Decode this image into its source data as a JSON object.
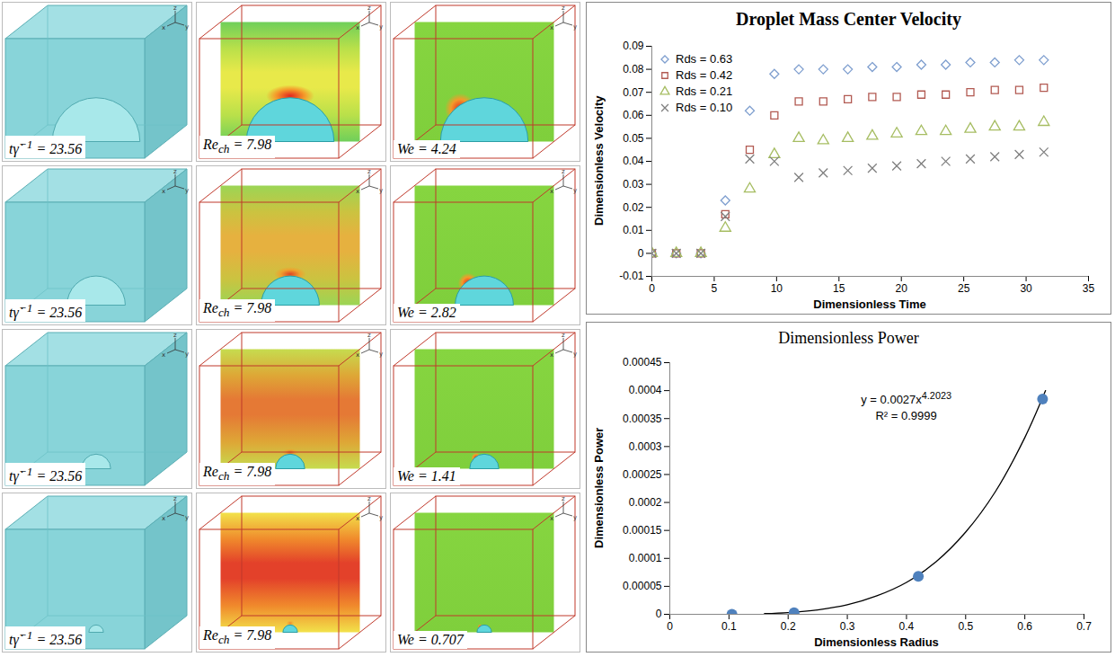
{
  "panels": {
    "separator": "=",
    "time_symbol": {
      "text": "tγ̇",
      "sup": "−1"
    },
    "re_symbol": {
      "text": "Re",
      "sub": "ch"
    },
    "we_symbol": {
      "text": "We"
    },
    "triad": [
      "x",
      "y",
      "z"
    ],
    "rows": [
      {
        "time": 23.56,
        "re": 7.98,
        "we": 4.24
      },
      {
        "time": 23.56,
        "re": 7.98,
        "we": 2.82
      },
      {
        "time": 23.56,
        "re": 7.98,
        "we": 1.41
      },
      {
        "time": 23.56,
        "re": 7.98,
        "we": 0.707
      }
    ]
  },
  "chart_data": [
    {
      "type": "scatter",
      "title": "Droplet Mass Center Velocity",
      "x_label": "Dimensionless Time",
      "y_label": "Dimensionless Velocity",
      "x": [
        0,
        1.96,
        3.93,
        5.89,
        7.85,
        9.82,
        11.78,
        13.74,
        15.71,
        17.67,
        19.63,
        21.6,
        23.56,
        25.53,
        27.49,
        29.45,
        31.42
      ],
      "series": [
        {
          "name": "Rds = 0.63",
          "color": "#7f9fcf",
          "marker": "diamond",
          "values": [
            0,
            0,
            0,
            0.023,
            0.062,
            0.078,
            0.08,
            0.08,
            0.08,
            0.081,
            0.081,
            0.082,
            0.082,
            0.083,
            0.083,
            0.084,
            0.084
          ]
        },
        {
          "name": "Rds = 0.42",
          "color": "#b25a52",
          "marker": "square",
          "values": [
            0,
            0,
            0,
            0.017,
            0.045,
            0.06,
            0.066,
            0.066,
            0.067,
            0.068,
            0.068,
            0.069,
            0.069,
            0.07,
            0.071,
            0.071,
            0.072
          ]
        },
        {
          "name": "Rds = 0.21",
          "color": "#a6bd62",
          "marker": "triangle",
          "values": [
            0,
            0,
            0,
            0.011,
            0.028,
            0.043,
            0.05,
            0.049,
            0.05,
            0.051,
            0.052,
            0.053,
            0.053,
            0.054,
            0.055,
            0.055,
            0.057
          ]
        },
        {
          "name": "Rds = 0.10",
          "color": "#7f7f7f",
          "marker": "x",
          "values": [
            0,
            0,
            0,
            0.016,
            0.041,
            0.04,
            0.033,
            0.035,
            0.036,
            0.037,
            0.038,
            0.039,
            0.04,
            0.041,
            0.042,
            0.043,
            0.044
          ]
        }
      ],
      "xlim": [
        0,
        35
      ],
      "xticks": [
        0,
        5,
        10,
        15,
        20,
        25,
        30,
        35
      ],
      "ylim": [
        -0.01,
        0.09
      ],
      "yticks": [
        -0.01,
        0,
        0.01,
        0.02,
        0.03,
        0.04,
        0.05,
        0.06,
        0.07,
        0.08,
        0.09
      ],
      "grid": false,
      "legend": "top-left"
    },
    {
      "type": "scatter",
      "title": "Dimensionless Power",
      "x_label": "Dimensionless Radius",
      "y_label": "Dimensionless Power",
      "x": [
        0.105,
        0.21,
        0.42,
        0.63
      ],
      "values": [
        0,
        3e-06,
        6.8e-05,
        0.000385
      ],
      "color": "#4f81bd",
      "marker": "circle",
      "trendline": {
        "x": [
          0.16,
          0.2,
          0.25,
          0.3,
          0.35,
          0.4,
          0.45,
          0.5,
          0.55,
          0.6,
          0.635
        ],
        "values": [
          1.2e-06,
          3.1e-06,
          8e-06,
          1.7e-05,
          3.3e-05,
          5.7e-05,
          9.4e-05,
          0.000147,
          0.000219,
          0.000316,
          0.0004
        ],
        "color": "#000000",
        "line_style": "solid"
      },
      "annotations": [
        {
          "text": "y = 0.0027x",
          "sup": "4.2023"
        },
        {
          "text": "R² = 0.9999"
        }
      ],
      "xlim": [
        0,
        0.7
      ],
      "xticks": [
        0,
        0.1,
        0.2,
        0.3,
        0.4,
        0.5,
        0.6,
        0.7
      ],
      "ylim": [
        0,
        0.00045
      ],
      "yticks": [
        0,
        5e-05,
        0.0001,
        0.00015,
        0.0002,
        0.00025,
        0.0003,
        0.00035,
        0.0004,
        0.00045
      ],
      "grid": false
    }
  ]
}
